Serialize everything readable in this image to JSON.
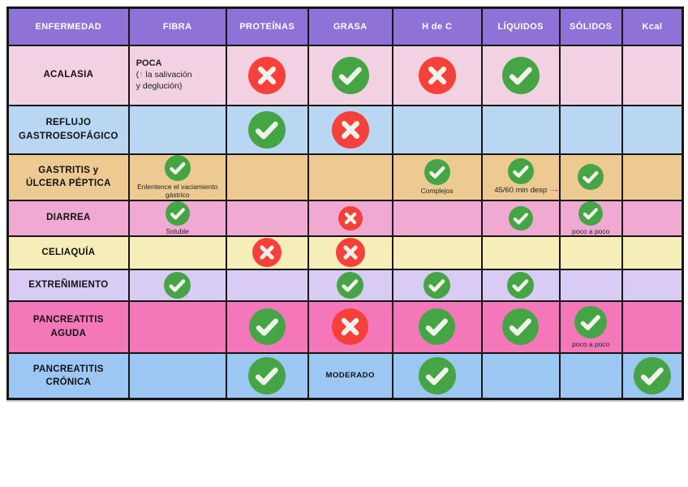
{
  "colors": {
    "header_bg": "#8f72d8",
    "header_text": "#ffffff",
    "border": "#161616",
    "check_green": "#45a545",
    "cross_red": "#f5413a",
    "icon_stroke": "#f2f2ec",
    "arrow_green": "#3db049",
    "arrow_pink": "#e8439f",
    "page_background": "#ffffff"
  },
  "table": {
    "columns": [
      {
        "id": "enfermedad",
        "label": "ENFERMEDAD"
      },
      {
        "id": "fibra",
        "label": "FIBRA"
      },
      {
        "id": "proteinas",
        "label": "PROTEÍNAS"
      },
      {
        "id": "grasa",
        "label": "GRASA"
      },
      {
        "id": "hdec",
        "label": "H de C"
      },
      {
        "id": "liquidos",
        "label": "LÍQUIDOS"
      },
      {
        "id": "solidos",
        "label": "SÓLIDOS"
      },
      {
        "id": "kcal",
        "label": "Kcal"
      }
    ],
    "rows": [
      {
        "id": "acalasia",
        "disease": "ACALASIA",
        "color": "#f2d2e2",
        "cells": {
          "fibra": {
            "note": {
              "title": "POCA",
              "prefix": "(",
              "arrow": "↑",
              "line1": " la salivación",
              "line2": "y deglución)"
            }
          },
          "proteinas": {
            "icon": "cross"
          },
          "grasa": {
            "icon": "check"
          },
          "hdec": {
            "icon": "cross"
          },
          "liquidos": {
            "icon": "check"
          },
          "solidos": {},
          "kcal": {}
        }
      },
      {
        "id": "reflujo-gastroesofagico",
        "disease": "REFLUJO GASTROESOFÁGICO",
        "color": "#b9d7f3",
        "cells": {
          "fibra": {},
          "proteinas": {
            "icon": "check"
          },
          "grasa": {
            "icon": "cross"
          },
          "hdec": {},
          "liquidos": {},
          "solidos": {},
          "kcal": {}
        }
      },
      {
        "id": "gastritis-ulcera-peptica",
        "disease": "GASTRITIS y ÚLCERA PÉPTICA",
        "color": "#ecca92",
        "cells": {
          "fibra": {
            "icon": "check",
            "caption": "Enlentence el vaciamiento gástrico"
          },
          "proteinas": {},
          "grasa": {},
          "hdec": {
            "icon": "check",
            "caption": "Complejos"
          },
          "liquidos": {
            "icon": "check",
            "caption": "45/60 min desp",
            "caption_arrow": "→"
          },
          "solidos": {
            "icon": "check"
          },
          "kcal": {}
        }
      },
      {
        "id": "diarrea",
        "disease": "DIARREA",
        "color": "#efa9d2",
        "cells": {
          "fibra": {
            "icon": "check",
            "caption": "Soluble"
          },
          "proteinas": {},
          "grasa": {
            "icon": "cross"
          },
          "hdec": {},
          "liquidos": {
            "icon": "check"
          },
          "solidos": {
            "icon": "check",
            "caption": "poco a poco"
          },
          "kcal": {}
        }
      },
      {
        "id": "celiaquia",
        "disease": "CELIAQUÍA",
        "color": "#f5eeb9",
        "cells": {
          "fibra": {},
          "proteinas": {
            "icon": "cross"
          },
          "grasa": {
            "icon": "cross"
          },
          "hdec": {},
          "liquidos": {},
          "solidos": {},
          "kcal": {}
        }
      },
      {
        "id": "extrenimiento",
        "disease": "EXTREÑIMIENTO",
        "color": "#d9ccf4",
        "cells": {
          "fibra": {
            "icon": "check"
          },
          "proteinas": {},
          "grasa": {
            "icon": "check"
          },
          "hdec": {
            "icon": "check"
          },
          "liquidos": {
            "icon": "check"
          },
          "solidos": {},
          "kcal": {}
        }
      },
      {
        "id": "pancreatitis-aguda",
        "disease": "PANCREATITIS AGUDA",
        "color": "#f478b9",
        "cells": {
          "fibra": {},
          "proteinas": {
            "icon": "check"
          },
          "grasa": {
            "icon": "cross"
          },
          "hdec": {
            "icon": "check"
          },
          "liquidos": {
            "icon": "check"
          },
          "solidos": {
            "icon": "check",
            "caption": "poco a poco"
          },
          "kcal": {}
        }
      },
      {
        "id": "pancreatitis-cronica",
        "disease": "PANCREATITIS CRÓNICA",
        "color": "#9cc7f3",
        "cells": {
          "fibra": {},
          "proteinas": {
            "icon": "check"
          },
          "grasa": {
            "text": "MODERADO"
          },
          "hdec": {
            "icon": "check"
          },
          "liquidos": {},
          "solidos": {},
          "kcal": {
            "icon": "check"
          }
        }
      }
    ]
  }
}
